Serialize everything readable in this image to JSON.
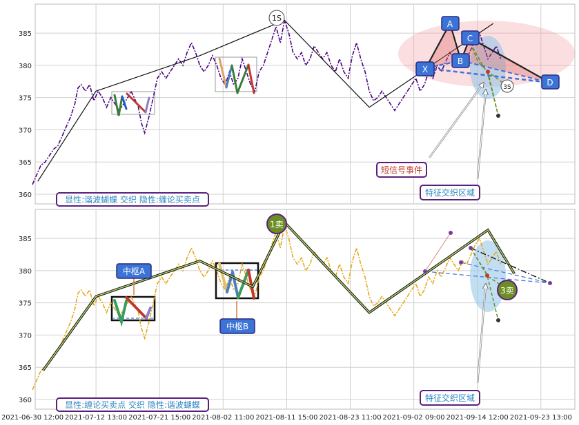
{
  "chart_data": {
    "type": "line",
    "x_ticks": [
      "2021-06-30 12:00",
      "2021-07-12 13:00",
      "2021-07-21 15:00",
      "2021-08-02 11:00",
      "2021-08-11 15:00",
      "2021-08-23 11:00",
      "2021-09-02 09:00",
      "2021-09-14 12:00",
      "2021-09-23 13:00"
    ],
    "y_ticks": [
      360,
      365,
      370,
      375,
      380,
      385
    ],
    "ylim": [
      358.5,
      389.5
    ],
    "grid": true,
    "panels": [
      {
        "name": "top",
        "legend_text": "显性:谐波蝴蝶 交织 隐性:缠论买卖点",
        "price_color": "#4b0082",
        "price_points": [
          [
            0,
            361.5
          ],
          [
            0.4,
            363
          ],
          [
            0.8,
            364.5
          ],
          [
            1.2,
            365
          ],
          [
            1.6,
            366
          ],
          [
            2,
            367
          ],
          [
            2.4,
            367.5
          ],
          [
            2.8,
            369
          ],
          [
            3.2,
            370.5
          ],
          [
            3.6,
            372
          ],
          [
            4,
            374
          ],
          [
            4.3,
            376.5
          ],
          [
            4.6,
            377
          ],
          [
            5,
            376
          ],
          [
            5.4,
            377
          ],
          [
            5.8,
            374.5
          ],
          [
            6.2,
            376
          ],
          [
            6.6,
            375
          ],
          [
            7,
            373.5
          ],
          [
            7.4,
            375
          ],
          [
            7.8,
            374
          ],
          [
            8.2,
            373
          ],
          [
            8.6,
            374
          ],
          [
            9,
            375
          ],
          [
            9.3,
            376
          ],
          [
            9.6,
            375
          ],
          [
            10,
            373.5
          ],
          [
            10.3,
            371
          ],
          [
            10.6,
            369.5
          ],
          [
            11,
            372
          ],
          [
            11.4,
            375
          ],
          [
            11.8,
            378
          ],
          [
            12.2,
            379
          ],
          [
            12.6,
            378
          ],
          [
            13,
            379
          ],
          [
            13.4,
            380
          ],
          [
            13.8,
            381
          ],
          [
            14.2,
            380
          ],
          [
            14.6,
            382
          ],
          [
            15,
            383.5
          ],
          [
            15.4,
            382
          ],
          [
            15.8,
            380
          ],
          [
            16.2,
            379
          ],
          [
            16.6,
            380
          ],
          [
            17,
            381.5
          ],
          [
            17.4,
            380
          ],
          [
            17.8,
            378
          ],
          [
            18.2,
            377
          ],
          [
            18.6,
            379
          ],
          [
            19,
            377
          ],
          [
            19.4,
            378
          ],
          [
            19.8,
            381
          ],
          [
            20.2,
            379
          ],
          [
            20.6,
            377
          ],
          [
            21,
            376
          ],
          [
            21.4,
            379
          ],
          [
            21.8,
            380
          ],
          [
            22.2,
            382
          ],
          [
            22.6,
            384
          ],
          [
            23,
            386
          ],
          [
            23.4,
            383.5
          ],
          [
            23.8,
            387
          ],
          [
            24.2,
            385
          ],
          [
            24.6,
            382
          ],
          [
            25,
            381
          ],
          [
            25.4,
            382
          ],
          [
            25.8,
            380
          ],
          [
            26.2,
            381
          ],
          [
            26.6,
            383
          ],
          [
            27,
            382
          ],
          [
            27.4,
            381
          ],
          [
            27.8,
            382
          ],
          [
            28.2,
            380
          ],
          [
            28.6,
            379
          ],
          [
            29,
            381
          ],
          [
            29.4,
            379
          ],
          [
            29.8,
            378
          ],
          [
            30.2,
            381.5
          ],
          [
            30.6,
            383.5
          ],
          [
            31,
            381
          ],
          [
            31.4,
            379
          ],
          [
            31.8,
            376
          ],
          [
            32.2,
            374.5
          ],
          [
            32.6,
            375
          ],
          [
            33,
            376
          ],
          [
            33.4,
            375
          ],
          [
            33.8,
            374
          ],
          [
            34.2,
            373
          ],
          [
            34.6,
            374
          ],
          [
            35,
            375
          ],
          [
            35.4,
            376
          ],
          [
            35.8,
            377
          ],
          [
            36.2,
            378
          ],
          [
            36.6,
            376
          ],
          [
            37,
            377
          ],
          [
            37.4,
            379
          ],
          [
            37.8,
            378
          ],
          [
            38.2,
            380
          ],
          [
            38.6,
            379
          ],
          [
            39,
            380.5
          ],
          [
            39.4,
            382
          ],
          [
            39.8,
            381
          ],
          [
            40.2,
            380
          ],
          [
            40.6,
            381.5
          ],
          [
            41,
            381
          ],
          [
            41.4,
            382.5
          ],
          [
            41.8,
            384
          ],
          [
            42.2,
            385
          ],
          [
            42.6,
            383
          ],
          [
            43,
            381
          ],
          [
            43.4,
            382
          ],
          [
            43.8,
            383
          ],
          [
            44.2,
            381
          ]
        ],
        "swing_line": [
          [
            0.5,
            362
          ],
          [
            6,
            376
          ],
          [
            15.8,
            381.5
          ],
          [
            23.8,
            387
          ],
          [
            31.8,
            373.5
          ],
          [
            43.5,
            386.5
          ]
        ],
        "markers": [
          {
            "label": "1S",
            "x": 23.8,
            "y": 388.2
          },
          {
            "label": "3S",
            "x": 47.5,
            "y": 376.2
          }
        ],
        "harmonic_points": [
          {
            "label": "X",
            "x": 38.7,
            "y": 379.8
          },
          {
            "label": "A",
            "x": 43.3,
            "y": 386.8
          },
          {
            "label": "B",
            "x": 42.3,
            "y": 380.9
          },
          {
            "label": "C",
            "x": 44.5,
            "y": 384.6
          },
          {
            "label": "D",
            "x": 52.3,
            "y": 377.7
          }
        ],
        "annotations": [
          {
            "text": "短信号事件",
            "x": 35.5,
            "y": 364.1
          },
          {
            "text": "特征交织区域",
            "x": 40.5,
            "y": 360.5
          }
        ]
      },
      {
        "name": "bottom",
        "legend_text": "显性:缠论买卖点 交织 隐性:谐波蝴蝶",
        "price_color": "#e6a817",
        "swing_line": [
          [
            1,
            364.5
          ],
          [
            6,
            376
          ],
          [
            15.8,
            381.5
          ],
          [
            20.8,
            377.5
          ],
          [
            23.8,
            387.5
          ],
          [
            31.8,
            373.5
          ],
          [
            43,
            386.3
          ],
          [
            45.5,
            379.5
          ]
        ],
        "markers": [
          {
            "label": "1卖",
            "x": 23.8,
            "y": 386.8
          },
          {
            "label": "3卖",
            "x": 47.5,
            "y": 378.8
          }
        ],
        "annotations": [
          {
            "text": "中枢A",
            "x": 7.5,
            "y": 380.4
          },
          {
            "text": "中枢B",
            "x": 16.5,
            "y": 371.5
          },
          {
            "text": "特征交织区域",
            "x": 40.5,
            "y": 360.5
          }
        ]
      }
    ]
  }
}
